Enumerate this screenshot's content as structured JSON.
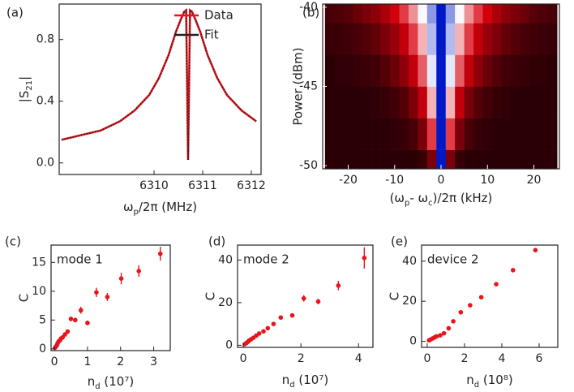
{
  "chart_data": [
    {
      "type": "line",
      "panel": "(a)",
      "xlabel": [
        "ω",
        {
          "sub": "p"
        },
        "/2π (MHz)"
      ],
      "ylabel": [
        "|S",
        {
          "sub": "21"
        },
        "|"
      ],
      "x": [
        6308.1,
        6308.5,
        6308.9,
        6309.3,
        6309.6,
        6309.9,
        6310.1,
        6310.3,
        6310.45,
        6310.55,
        6310.62,
        6310.66,
        6310.7,
        6310.74,
        6310.78,
        6310.85,
        6310.95,
        6311.1,
        6311.3,
        6311.5,
        6311.8,
        6312.1
      ],
      "series": [
        {
          "name": "Data",
          "color": "#e8141b",
          "linestyle": "solid",
          "values": [
            0.15,
            0.18,
            0.21,
            0.27,
            0.34,
            0.44,
            0.55,
            0.7,
            0.85,
            0.93,
            0.98,
            0.99,
            0.02,
            0.99,
            0.98,
            0.93,
            0.85,
            0.7,
            0.55,
            0.44,
            0.34,
            0.27
          ]
        },
        {
          "name": "Fit",
          "color": "#222222",
          "linestyle": "dotted",
          "values": [
            0.15,
            0.18,
            0.21,
            0.27,
            0.34,
            0.44,
            0.55,
            0.7,
            0.85,
            0.93,
            0.98,
            0.99,
            0.02,
            0.99,
            0.98,
            0.93,
            0.85,
            0.7,
            0.55,
            0.44,
            0.34,
            0.27
          ]
        }
      ],
      "xlim": [
        6308.05,
        6312.2
      ],
      "xticks": [
        6310,
        6311,
        6312
      ],
      "ylim": [
        -0.075,
        1.03
      ],
      "yticks": [
        {
          "value": 0,
          "label": "0.0"
        },
        0.4,
        0.8
      ],
      "legend": "upper right"
    },
    {
      "type": "heatmap",
      "panel": "(b)",
      "xlabel": [
        "(ω",
        {
          "sub": "p"
        },
        "- ω",
        {
          "sub": "c"
        },
        ")/2π (kHz)"
      ],
      "ylabel": "Power (dBm)",
      "x": [
        -24,
        -22,
        -20,
        -18,
        -16,
        -14,
        -12,
        -10,
        -8,
        -6,
        -4,
        -2,
        0,
        2,
        4,
        6,
        8,
        10,
        12,
        14,
        16,
        18,
        20,
        22,
        24
      ],
      "y": [
        -50,
        -48,
        -46,
        -44,
        -42,
        -40
      ],
      "z": [
        [
          0,
          0,
          0,
          0,
          0,
          0,
          0,
          0,
          0,
          0,
          0.02,
          0.14,
          1,
          0.14,
          0.02,
          0,
          0,
          0,
          0,
          0,
          0,
          0,
          0,
          0,
          0
        ],
        [
          0,
          0,
          0,
          0,
          0,
          0,
          0,
          0.01,
          0.02,
          0.05,
          0.14,
          0.37,
          1,
          0.37,
          0.14,
          0.05,
          0.02,
          0.01,
          0,
          0,
          0,
          0,
          0,
          0,
          0
        ],
        [
          0,
          0,
          0,
          0,
          0,
          0.01,
          0.02,
          0.04,
          0.07,
          0.14,
          0.26,
          0.51,
          1,
          0.51,
          0.26,
          0.14,
          0.07,
          0.04,
          0.02,
          0.01,
          0,
          0,
          0,
          0,
          0
        ],
        [
          0,
          0.01,
          0.01,
          0.02,
          0.03,
          0.04,
          0.07,
          0.11,
          0.17,
          0.26,
          0.41,
          0.64,
          1,
          0.64,
          0.41,
          0.26,
          0.17,
          0.11,
          0.07,
          0.04,
          0.03,
          0.02,
          0.01,
          0.01,
          0
        ],
        [
          0.02,
          0.03,
          0.04,
          0.05,
          0.07,
          0.1,
          0.14,
          0.19,
          0.26,
          0.37,
          0.51,
          0.72,
          1,
          0.72,
          0.51,
          0.37,
          0.26,
          0.19,
          0.14,
          0.1,
          0.07,
          0.05,
          0.04,
          0.03,
          0.02
        ],
        [
          0.05,
          0.06,
          0.08,
          0.11,
          0.14,
          0.17,
          0.22,
          0.29,
          0.37,
          0.47,
          0.61,
          0.78,
          1,
          0.78,
          0.61,
          0.47,
          0.37,
          0.29,
          0.22,
          0.17,
          0.14,
          0.11,
          0.08,
          0.06,
          0.05
        ]
      ],
      "colorscale": [
        [
          0,
          "#2a0006"
        ],
        [
          0.3,
          "#d8000c"
        ],
        [
          0.6,
          "#ffffff"
        ],
        [
          1,
          "#0018c8"
        ]
      ],
      "xlim": [
        -25.5,
        25.5
      ],
      "xticks": [
        -20,
        -10,
        0,
        10,
        20
      ],
      "ylim": [
        -50.2,
        -39.8
      ],
      "yticks": [
        -40,
        -45,
        -50
      ]
    },
    {
      "type": "scatter",
      "panel": "(c)",
      "annotation": "mode 1",
      "xlabel": [
        "n",
        {
          "sub": "d"
        },
        " (10⁷)"
      ],
      "ylabel": "C",
      "series": [
        {
          "color": "#e8141b",
          "x": [
            0.02,
            0.05,
            0.08,
            0.1,
            0.13,
            0.17,
            0.2,
            0.25,
            0.32,
            0.4,
            0.5,
            0.63,
            0.8,
            1.0,
            1.27,
            1.6,
            2.02,
            2.55,
            3.2
          ],
          "values": [
            0.2,
            0.4,
            0.7,
            1.0,
            1.3,
            1.5,
            1.8,
            2.0,
            2.5,
            3.0,
            5.2,
            5.0,
            6.7,
            4.5,
            9.8,
            9.0,
            12.2,
            13.5,
            16.5
          ],
          "errors": [
            0.1,
            0.15,
            0.15,
            0.2,
            0.2,
            0.2,
            0.3,
            0.3,
            0.3,
            0.4,
            0.4,
            0.4,
            0.6,
            0.4,
            0.8,
            0.7,
            1.0,
            1.0,
            1.2
          ]
        }
      ],
      "xlim": [
        -0.1,
        3.5
      ],
      "xticks": [
        0,
        1,
        2,
        3
      ],
      "ylim": [
        -0.3,
        18
      ],
      "yticks": [
        0,
        5,
        10,
        15
      ]
    },
    {
      "type": "scatter",
      "panel": "(d)",
      "annotation": "mode 2",
      "xlabel": [
        "n",
        {
          "sub": "d"
        },
        " (10⁷)"
      ],
      "ylabel": "C",
      "series": [
        {
          "color": "#e8141b",
          "x": [
            0.05,
            0.1,
            0.15,
            0.2,
            0.27,
            0.35,
            0.45,
            0.55,
            0.7,
            0.85,
            1.05,
            1.3,
            1.7,
            2.1,
            2.6,
            3.3,
            4.2
          ],
          "values": [
            0.5,
            1,
            1.5,
            2.2,
            2.8,
            3.5,
            4.5,
            5.5,
            6.5,
            8,
            10,
            13,
            14,
            22,
            20.5,
            28,
            41
          ],
          "errors": [
            0.3,
            0.3,
            0.3,
            0.3,
            0.3,
            0.3,
            0.3,
            0.3,
            0.3,
            0.3,
            0.3,
            0.3,
            0.3,
            1.5,
            1.3,
            2.2,
            5.0
          ]
        }
      ],
      "xlim": [
        -0.2,
        4.5
      ],
      "xticks": [
        0,
        2,
        4
      ],
      "ylim": [
        -1,
        47
      ],
      "yticks": [
        0,
        20,
        40
      ]
    },
    {
      "type": "scatter",
      "panel": "(e)",
      "annotation": "device 2",
      "xlabel": [
        "n",
        {
          "sub": "d"
        },
        " (10⁸)"
      ],
      "ylabel": "C",
      "series": [
        {
          "color": "#e8141b",
          "x": [
            0.1,
            0.2,
            0.3,
            0.4,
            0.5,
            0.7,
            0.9,
            1.15,
            1.4,
            1.8,
            2.3,
            2.9,
            3.7,
            4.6,
            5.8
          ],
          "values": [
            0.5,
            1,
            1.5,
            2,
            2.5,
            3,
            4,
            6.5,
            10,
            14.5,
            18,
            22,
            28.5,
            35.5,
            45.5
          ],
          "errors": [
            0.3,
            0.3,
            0.3,
            0.3,
            0.3,
            0.3,
            0.3,
            0.3,
            0.3,
            0.3,
            0.3,
            0.3,
            0.3,
            0.3,
            0.3
          ]
        }
      ],
      "xlim": [
        -0.3,
        7
      ],
      "xticks": [
        0,
        2,
        4,
        6
      ],
      "ylim": [
        -3,
        48
      ],
      "yticks": [
        0,
        20,
        40
      ]
    }
  ]
}
